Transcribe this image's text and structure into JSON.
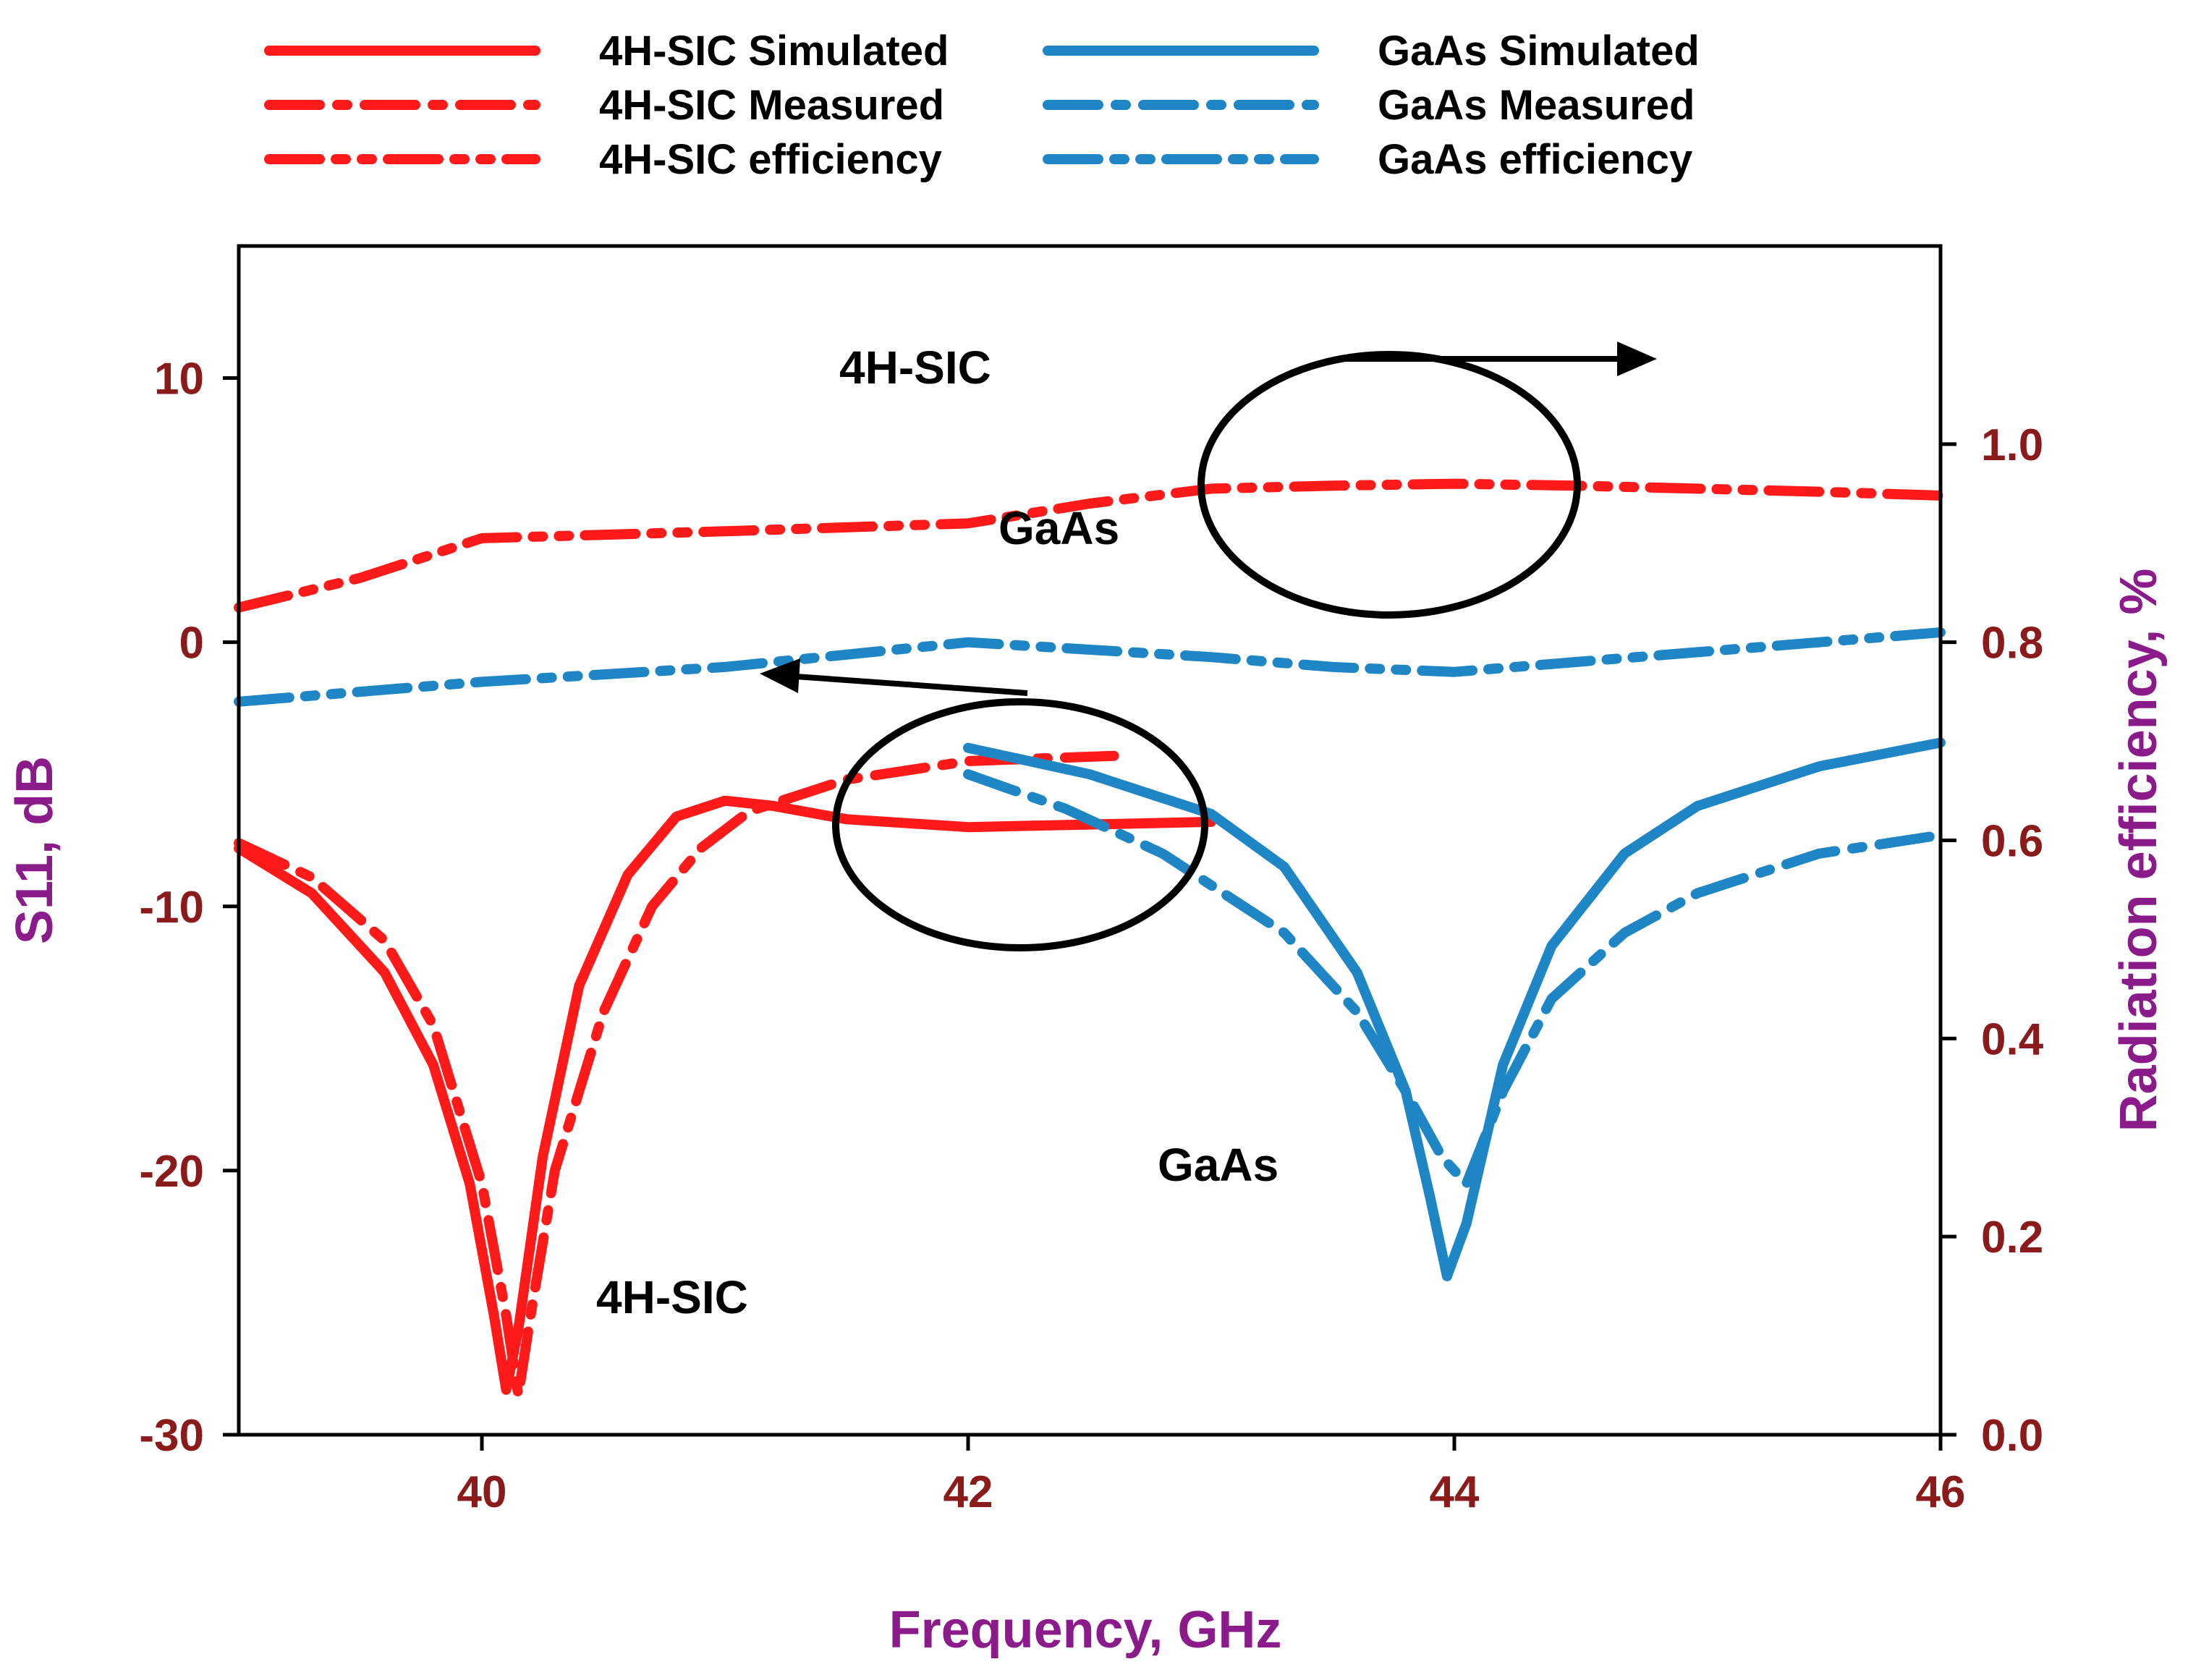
{
  "chart_data": {
    "type": "line",
    "title": "",
    "xlabel": "Frequency, GHz",
    "ylabel_left": "S11, dB",
    "ylabel_right": "Radiation efficiency, %",
    "xlim": [
      39,
      46
    ],
    "ylim_left": [
      -30,
      15
    ],
    "ylim_right": [
      0,
      1.2
    ],
    "x_ticks": [
      40,
      42,
      44,
      46
    ],
    "x_tick_labels": [
      "40",
      "42",
      "44",
      "46"
    ],
    "y_left_ticks": [
      -30,
      -20,
      -10,
      0,
      10
    ],
    "y_left_tick_labels": [
      "-30",
      "-20",
      "-10",
      "0",
      "10"
    ],
    "y_right_ticks": [
      0,
      0.2,
      0.4,
      0.6,
      0.8,
      1.0
    ],
    "y_right_tick_labels": [
      "0.0",
      "0.2",
      "0.4",
      "0.6",
      "0.8",
      "1.0"
    ],
    "colors": {
      "sic": "#ff1a1a",
      "gaas": "#1f86c6",
      "tick": "#8b1a1a",
      "axis_title": "#8b1a8b"
    },
    "series": [
      {
        "name": "4H-SIC Simulated",
        "axis": "left",
        "color": "#ff1a1a",
        "style": "solid",
        "x": [
          39.0,
          39.3,
          39.6,
          39.8,
          39.95,
          40.05,
          40.1,
          40.15,
          40.25,
          40.4,
          40.6,
          40.8,
          41.0,
          41.2,
          41.5,
          42.0,
          42.5,
          43.0
        ],
        "y": [
          -7.8,
          -9.5,
          -12.5,
          -16.0,
          -20.5,
          -25.5,
          -28.3,
          -26.0,
          -19.5,
          -13.0,
          -8.8,
          -6.6,
          -6.0,
          -6.2,
          -6.7,
          -7.0,
          -6.9,
          -6.8
        ]
      },
      {
        "name": "4H-SIC Measured",
        "axis": "left",
        "color": "#ff1a1a",
        "style": "dashdot",
        "x": [
          39.0,
          39.3,
          39.6,
          39.8,
          40.0,
          40.1,
          40.15,
          40.2,
          40.3,
          40.5,
          40.7,
          40.9,
          41.1,
          41.5,
          42.0,
          42.3,
          42.6
        ],
        "y": [
          -7.6,
          -8.9,
          -11.3,
          -14.5,
          -20.5,
          -25.5,
          -28.5,
          -25.5,
          -20.0,
          -14.0,
          -10.0,
          -7.8,
          -6.4,
          -5.2,
          -4.5,
          -4.4,
          -4.3
        ]
      },
      {
        "name": "4H-SIC efficiency",
        "axis": "right",
        "color": "#ff1a1a",
        "style": "dashdotdot",
        "x": [
          39.0,
          39.5,
          40.0,
          41.0,
          42.0,
          42.5,
          43.0,
          43.5,
          44.0,
          44.5,
          45.0,
          45.5,
          46.0
        ],
        "y": [
          0.835,
          0.865,
          0.905,
          0.912,
          0.92,
          0.94,
          0.955,
          0.958,
          0.96,
          0.958,
          0.955,
          0.952,
          0.948
        ]
      },
      {
        "name": "GaAs Simulated",
        "axis": "left",
        "color": "#1f86c6",
        "style": "solid",
        "x": [
          42.0,
          42.5,
          43.0,
          43.3,
          43.6,
          43.8,
          43.9,
          43.97,
          44.05,
          44.2,
          44.4,
          44.7,
          45.0,
          45.5,
          46.0
        ],
        "y": [
          -4.0,
          -5.0,
          -6.5,
          -8.5,
          -12.5,
          -17.0,
          -21.0,
          -24.0,
          -22.0,
          -16.0,
          -11.5,
          -8.0,
          -6.2,
          -4.7,
          -3.8
        ]
      },
      {
        "name": "GaAs Measured",
        "axis": "left",
        "color": "#1f86c6",
        "style": "dashdot",
        "x": [
          42.0,
          42.4,
          42.8,
          43.0,
          43.3,
          43.6,
          43.8,
          43.95,
          44.05,
          44.2,
          44.4,
          44.7,
          45.0,
          45.5,
          46.0
        ],
        "y": [
          -5.0,
          -6.3,
          -8.0,
          -9.2,
          -11.0,
          -14.0,
          -17.0,
          -19.5,
          -20.5,
          -17.0,
          -13.5,
          -11.0,
          -9.5,
          -8.0,
          -7.3
        ]
      },
      {
        "name": "GaAs efficiency",
        "axis": "right",
        "color": "#1f86c6",
        "style": "dashdotdot",
        "x": [
          39.0,
          40.0,
          41.0,
          42.0,
          43.0,
          43.5,
          44.0,
          44.5,
          45.0,
          45.5,
          46.0
        ],
        "y": [
          0.74,
          0.76,
          0.775,
          0.8,
          0.785,
          0.775,
          0.77,
          0.78,
          0.79,
          0.8,
          0.81
        ]
      }
    ],
    "legend": {
      "placement": "top, two columns",
      "items": [
        "4H-SIC Simulated",
        "4H-SIC Measured",
        "4H-SIC efficiency",
        "GaAs Simulated",
        "GaAs Measured",
        "GaAs efficiency"
      ]
    },
    "annotations": {
      "label_sic_top": "4H-SIC",
      "label_gaas_mid": "GaAs",
      "label_gaas_bottom": "GaAs",
      "label_sic_bottom": "4H-SIC"
    }
  }
}
